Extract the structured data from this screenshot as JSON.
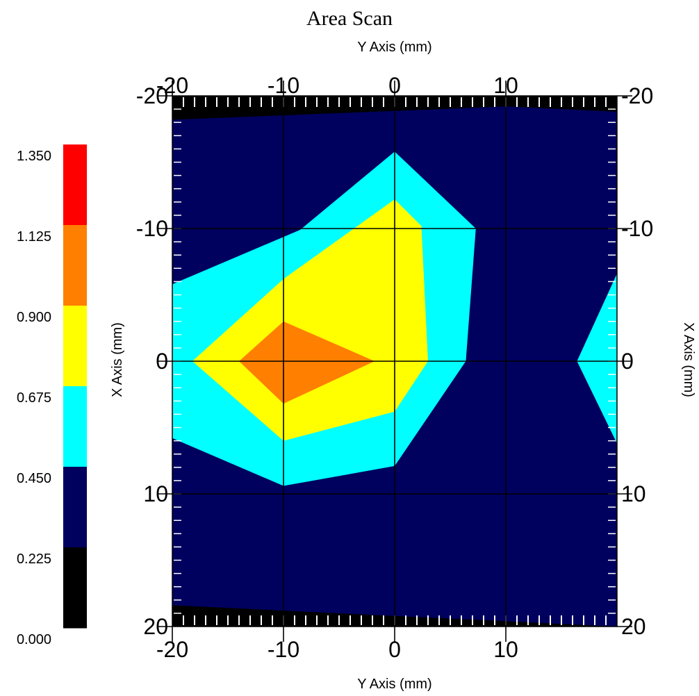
{
  "chart_data": {
    "type": "heatmap",
    "title": "Area Scan",
    "xlabel": "Y Axis (mm)",
    "ylabel": "X Axis (mm)",
    "xlim": [
      -20,
      20
    ],
    "ylim": [
      -20,
      20
    ],
    "y_inverted": true,
    "x_ticks": [
      "-20",
      "-10",
      "0",
      "10"
    ],
    "x_ticks_bottom": [
      "-20",
      "-10",
      "0",
      "10"
    ],
    "x_tick_values": [
      -20,
      -10,
      0,
      10
    ],
    "y_ticks": [
      "-20",
      "-10",
      "0",
      "10",
      "20"
    ],
    "y_tick_values": [
      -20,
      -10,
      0,
      10,
      20
    ],
    "grid": true,
    "legend": {
      "placement": "left",
      "labels": [
        "1.350",
        "1.125",
        "0.900",
        "0.675",
        "0.450",
        "0.225",
        "0.000"
      ],
      "bins": [
        {
          "min": 1.125,
          "max": 1.35,
          "color": "#ff0000"
        },
        {
          "min": 0.9,
          "max": 1.125,
          "color": "#ff7f00"
        },
        {
          "min": 0.675,
          "max": 0.9,
          "color": "#ffff00"
        },
        {
          "min": 0.45,
          "max": 0.675,
          "color": "#00ffff"
        },
        {
          "min": 0.225,
          "max": 0.45,
          "color": "#00005f"
        },
        {
          "min": 0.0,
          "max": 0.225,
          "color": "#000000"
        }
      ]
    },
    "contours": [
      {
        "level": 0.225,
        "color": "#000000",
        "points": [
          [
            -20,
            -20
          ],
          [
            20,
            -20
          ],
          [
            20,
            -18.8
          ],
          [
            10,
            -19.2
          ],
          [
            -20,
            -18.2
          ]
        ]
      },
      {
        "level": 0.225,
        "color": "#000000",
        "points": [
          [
            -20,
            20
          ],
          [
            20,
            20
          ],
          [
            -20,
            18.4
          ]
        ]
      },
      {
        "level": 0.675,
        "color": "#00ffff",
        "points": [
          [
            0,
            -15.8
          ],
          [
            7.3,
            -10
          ],
          [
            6.4,
            0
          ],
          [
            0,
            7.9
          ],
          [
            -10,
            9.4
          ],
          [
            -20,
            5.8
          ],
          [
            -20,
            -5.8
          ],
          [
            -8.5,
            -9.9
          ]
        ]
      },
      {
        "level": 0.675,
        "color": "#00ffff",
        "points": [
          [
            20,
            -6.6
          ],
          [
            20,
            6.2
          ],
          [
            16.4,
            0
          ]
        ]
      },
      {
        "level": 0.9,
        "color": "#ffff00",
        "points": [
          [
            0,
            -12.2
          ],
          [
            2.4,
            -10.2
          ],
          [
            3,
            0
          ],
          [
            0,
            3.8
          ],
          [
            -10,
            6
          ],
          [
            -18.2,
            0
          ],
          [
            -10,
            -6.2
          ]
        ]
      },
      {
        "level": 1.125,
        "color": "#ff7f00",
        "points": [
          [
            -10,
            -3
          ],
          [
            -1.8,
            0
          ],
          [
            -10,
            3.2
          ],
          [
            -14,
            0
          ]
        ]
      }
    ]
  },
  "colors": {
    "background": "#00005f",
    "grid": "#000000",
    "tick_mark": "#ffffff"
  }
}
